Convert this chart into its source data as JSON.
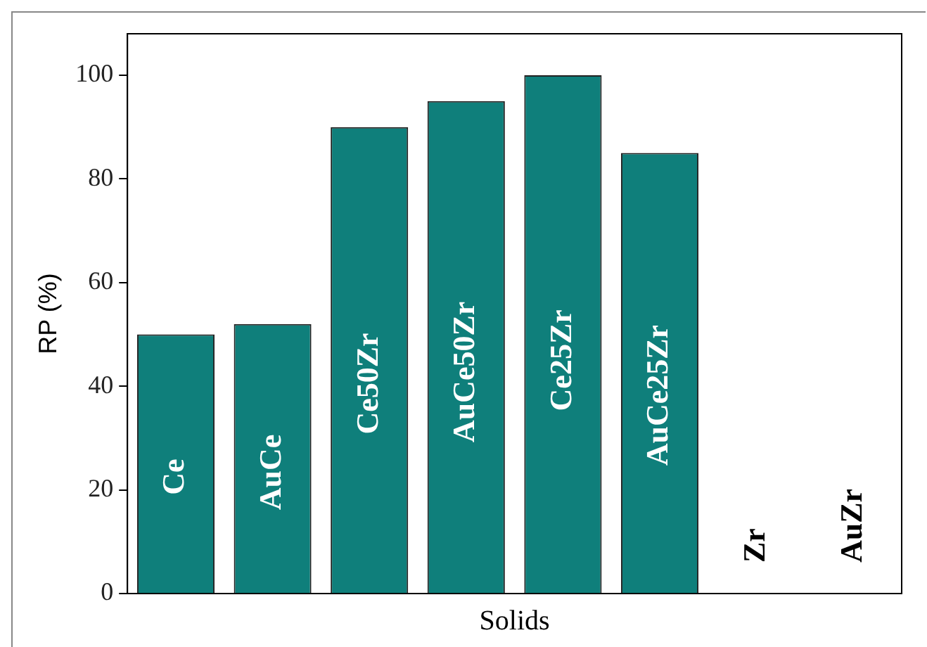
{
  "chart_data": {
    "type": "bar",
    "xlabel": "Solids",
    "ylabel": "RP (%)",
    "categories": [
      "Ce",
      "AuCe",
      "Ce50Zr",
      "AuCe50Zr",
      "Ce25Zr",
      "AuCe25Zr",
      "Zr",
      "AuZr"
    ],
    "values": [
      50,
      52,
      90,
      95,
      100,
      85,
      0,
      0
    ],
    "color": "#0f7f7b",
    "ylim": [
      0,
      108
    ],
    "yticks": [
      0,
      20,
      40,
      60,
      80,
      100
    ],
    "grid": false,
    "legend": false
  }
}
